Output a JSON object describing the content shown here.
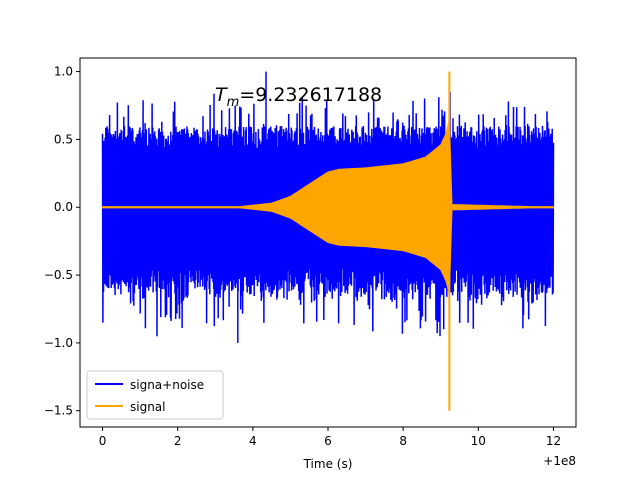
{
  "chart_data": {
    "type": "line",
    "title": "",
    "xlabel": "Time (s)",
    "ylabel": "",
    "x_offset_label": "+1e8",
    "xlim": [
      -0.6,
      12.6
    ],
    "ylim": [
      -1.62,
      1.1
    ],
    "xticks": [
      0,
      2,
      4,
      6,
      8,
      10,
      12
    ],
    "xtick_labels": [
      "0",
      "2",
      "4",
      "6",
      "8",
      "10",
      "12"
    ],
    "yticks": [
      -1.5,
      -1.0,
      -0.5,
      0.0,
      0.5,
      1.0
    ],
    "ytick_labels": [
      "−1.5",
      "−1.0",
      "−0.5",
      "0.0",
      "0.5",
      "1.0"
    ],
    "grid": false,
    "legend_position": "lower-left",
    "annotation": {
      "prefix": "T",
      "subscript": "m",
      "value": "=9.232617188",
      "x": 5.5,
      "y": 0.88
    },
    "series": [
      {
        "name": "signa+noise",
        "color": "#0000ff",
        "description": "broadband noise band, approx ±0.6 with spikes to ±1.0",
        "x_range": [
          0,
          12
        ],
        "band_upper": 0.6,
        "band_lower": -0.6,
        "spikes": [
          {
            "x": 4.35,
            "y": 1.0
          },
          {
            "x": 3.6,
            "y": -1.0
          },
          {
            "x": 8.98,
            "y": -0.95
          },
          {
            "x": 9.08,
            "y": -0.9
          },
          {
            "x": 9.25,
            "y": 0.85
          }
        ]
      },
      {
        "name": "signal",
        "color": "#ffa500",
        "description": "chirp envelope, merger near t = 9.23",
        "envelope": [
          {
            "x": 0.0,
            "y": 0.0
          },
          {
            "x": 3.5,
            "y": 0.0
          },
          {
            "x": 4.5,
            "y": 0.03
          },
          {
            "x": 5.0,
            "y": 0.08
          },
          {
            "x": 5.5,
            "y": 0.17
          },
          {
            "x": 6.0,
            "y": 0.26
          },
          {
            "x": 6.3,
            "y": 0.28
          },
          {
            "x": 7.0,
            "y": 0.29
          },
          {
            "x": 8.0,
            "y": 0.32
          },
          {
            "x": 8.6,
            "y": 0.37
          },
          {
            "x": 9.0,
            "y": 0.46
          },
          {
            "x": 9.15,
            "y": 0.55
          },
          {
            "x": 9.23,
            "y": 0.65
          },
          {
            "x": 9.3,
            "y": 0.02
          },
          {
            "x": 12.0,
            "y": 0.0
          }
        ],
        "peak": {
          "x": 9.23,
          "max": 1.0,
          "min": -1.5
        }
      }
    ]
  }
}
